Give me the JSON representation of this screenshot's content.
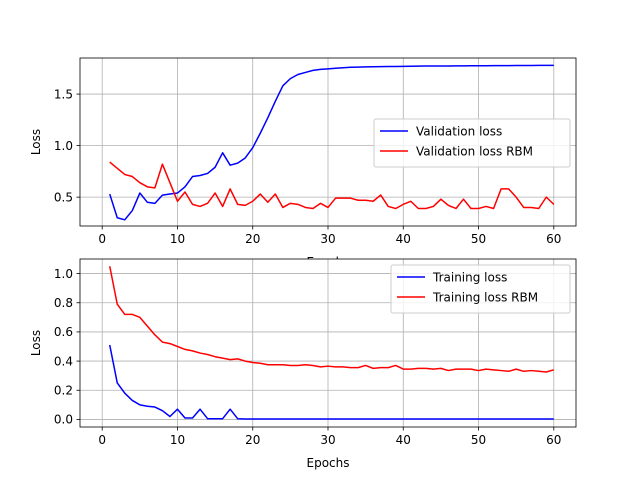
{
  "chart_data": [
    {
      "type": "line",
      "xlabel": "Epochs",
      "ylabel": "Loss",
      "xlim": [
        -2.95,
        62.95
      ],
      "ylim": [
        0.22,
        1.85
      ],
      "xticks": [
        0,
        10,
        20,
        30,
        40,
        50,
        60
      ],
      "yticks": [
        0.5,
        1.0,
        1.5
      ],
      "ytick_labels": [
        "0.5",
        "1.0",
        "1.5"
      ],
      "grid": true,
      "legend_position": "center-right",
      "x": [
        1,
        2,
        3,
        4,
        5,
        6,
        7,
        8,
        9,
        10,
        11,
        12,
        13,
        14,
        15,
        16,
        17,
        18,
        19,
        20,
        21,
        22,
        23,
        24,
        25,
        26,
        27,
        28,
        29,
        30,
        31,
        32,
        33,
        34,
        35,
        36,
        37,
        38,
        39,
        40,
        41,
        42,
        43,
        44,
        45,
        46,
        47,
        48,
        49,
        50,
        51,
        52,
        53,
        54,
        55,
        56,
        57,
        58,
        59,
        60
      ],
      "series": [
        {
          "name": "Validation loss",
          "color": "#0000ff",
          "values": [
            0.53,
            0.3,
            0.28,
            0.37,
            0.54,
            0.45,
            0.44,
            0.52,
            0.53,
            0.54,
            0.6,
            0.7,
            0.71,
            0.73,
            0.79,
            0.93,
            0.81,
            0.83,
            0.88,
            0.98,
            1.12,
            1.27,
            1.43,
            1.58,
            1.65,
            1.69,
            1.71,
            1.73,
            1.74,
            1.745,
            1.75,
            1.755,
            1.76,
            1.762,
            1.764,
            1.765,
            1.766,
            1.767,
            1.768,
            1.769,
            1.77,
            1.771,
            1.772,
            1.772,
            1.773,
            1.773,
            1.774,
            1.774,
            1.775,
            1.775,
            1.775,
            1.776,
            1.776,
            1.776,
            1.777,
            1.777,
            1.777,
            1.778,
            1.778,
            1.778
          ]
        },
        {
          "name": " Validation loss RBM",
          "color": "#ff0000",
          "values": [
            0.84,
            0.78,
            0.72,
            0.7,
            0.64,
            0.6,
            0.59,
            0.82,
            0.64,
            0.46,
            0.55,
            0.43,
            0.41,
            0.44,
            0.54,
            0.41,
            0.58,
            0.43,
            0.42,
            0.46,
            0.53,
            0.45,
            0.53,
            0.4,
            0.44,
            0.43,
            0.4,
            0.39,
            0.44,
            0.4,
            0.49,
            0.49,
            0.49,
            0.47,
            0.47,
            0.46,
            0.52,
            0.41,
            0.39,
            0.43,
            0.46,
            0.39,
            0.39,
            0.41,
            0.48,
            0.42,
            0.39,
            0.48,
            0.39,
            0.39,
            0.41,
            0.39,
            0.58,
            0.58,
            0.5,
            0.4,
            0.4,
            0.39,
            0.5,
            0.43
          ]
        }
      ]
    },
    {
      "type": "line",
      "xlabel": "Epochs",
      "ylabel": "Loss",
      "xlim": [
        -2.95,
        62.95
      ],
      "ylim": [
        -0.052,
        1.1
      ],
      "xticks": [
        0,
        10,
        20,
        30,
        40,
        50,
        60
      ],
      "yticks": [
        0.0,
        0.2,
        0.4,
        0.6,
        0.8,
        1.0
      ],
      "ytick_labels": [
        "0.0",
        "0.2",
        "0.4",
        "0.6",
        "0.8",
        "1.0"
      ],
      "grid": true,
      "legend_position": "top-right",
      "x": [
        1,
        2,
        3,
        4,
        5,
        6,
        7,
        8,
        9,
        10,
        11,
        12,
        13,
        14,
        15,
        16,
        17,
        18,
        19,
        20,
        21,
        22,
        23,
        24,
        25,
        26,
        27,
        28,
        29,
        30,
        31,
        32,
        33,
        34,
        35,
        36,
        37,
        38,
        39,
        40,
        41,
        42,
        43,
        44,
        45,
        46,
        47,
        48,
        49,
        50,
        51,
        52,
        53,
        54,
        55,
        56,
        57,
        58,
        59,
        60
      ],
      "series": [
        {
          "name": "Training loss",
          "color": "#0000ff",
          "values": [
            0.51,
            0.25,
            0.18,
            0.13,
            0.1,
            0.09,
            0.085,
            0.06,
            0.02,
            0.07,
            0.01,
            0.01,
            0.07,
            0.005,
            0.005,
            0.005,
            0.07,
            0.005,
            0.003,
            0.003,
            0.003,
            0.003,
            0.003,
            0.003,
            0.003,
            0.003,
            0.003,
            0.003,
            0.003,
            0.003,
            0.003,
            0.003,
            0.003,
            0.003,
            0.003,
            0.003,
            0.003,
            0.003,
            0.003,
            0.003,
            0.003,
            0.003,
            0.003,
            0.003,
            0.003,
            0.003,
            0.003,
            0.003,
            0.003,
            0.003,
            0.003,
            0.003,
            0.003,
            0.003,
            0.003,
            0.003,
            0.003,
            0.003,
            0.003,
            0.003
          ]
        },
        {
          "name": " Training loss RBM",
          "color": "#ff0000",
          "values": [
            1.05,
            0.79,
            0.72,
            0.72,
            0.7,
            0.64,
            0.58,
            0.53,
            0.52,
            0.5,
            0.48,
            0.47,
            0.455,
            0.445,
            0.43,
            0.42,
            0.41,
            0.415,
            0.4,
            0.39,
            0.385,
            0.375,
            0.375,
            0.375,
            0.37,
            0.37,
            0.375,
            0.37,
            0.36,
            0.365,
            0.36,
            0.36,
            0.355,
            0.355,
            0.37,
            0.35,
            0.355,
            0.355,
            0.37,
            0.345,
            0.345,
            0.35,
            0.35,
            0.345,
            0.35,
            0.335,
            0.345,
            0.345,
            0.345,
            0.335,
            0.345,
            0.34,
            0.335,
            0.33,
            0.345,
            0.33,
            0.335,
            0.33,
            0.325,
            0.34
          ]
        }
      ]
    }
  ]
}
